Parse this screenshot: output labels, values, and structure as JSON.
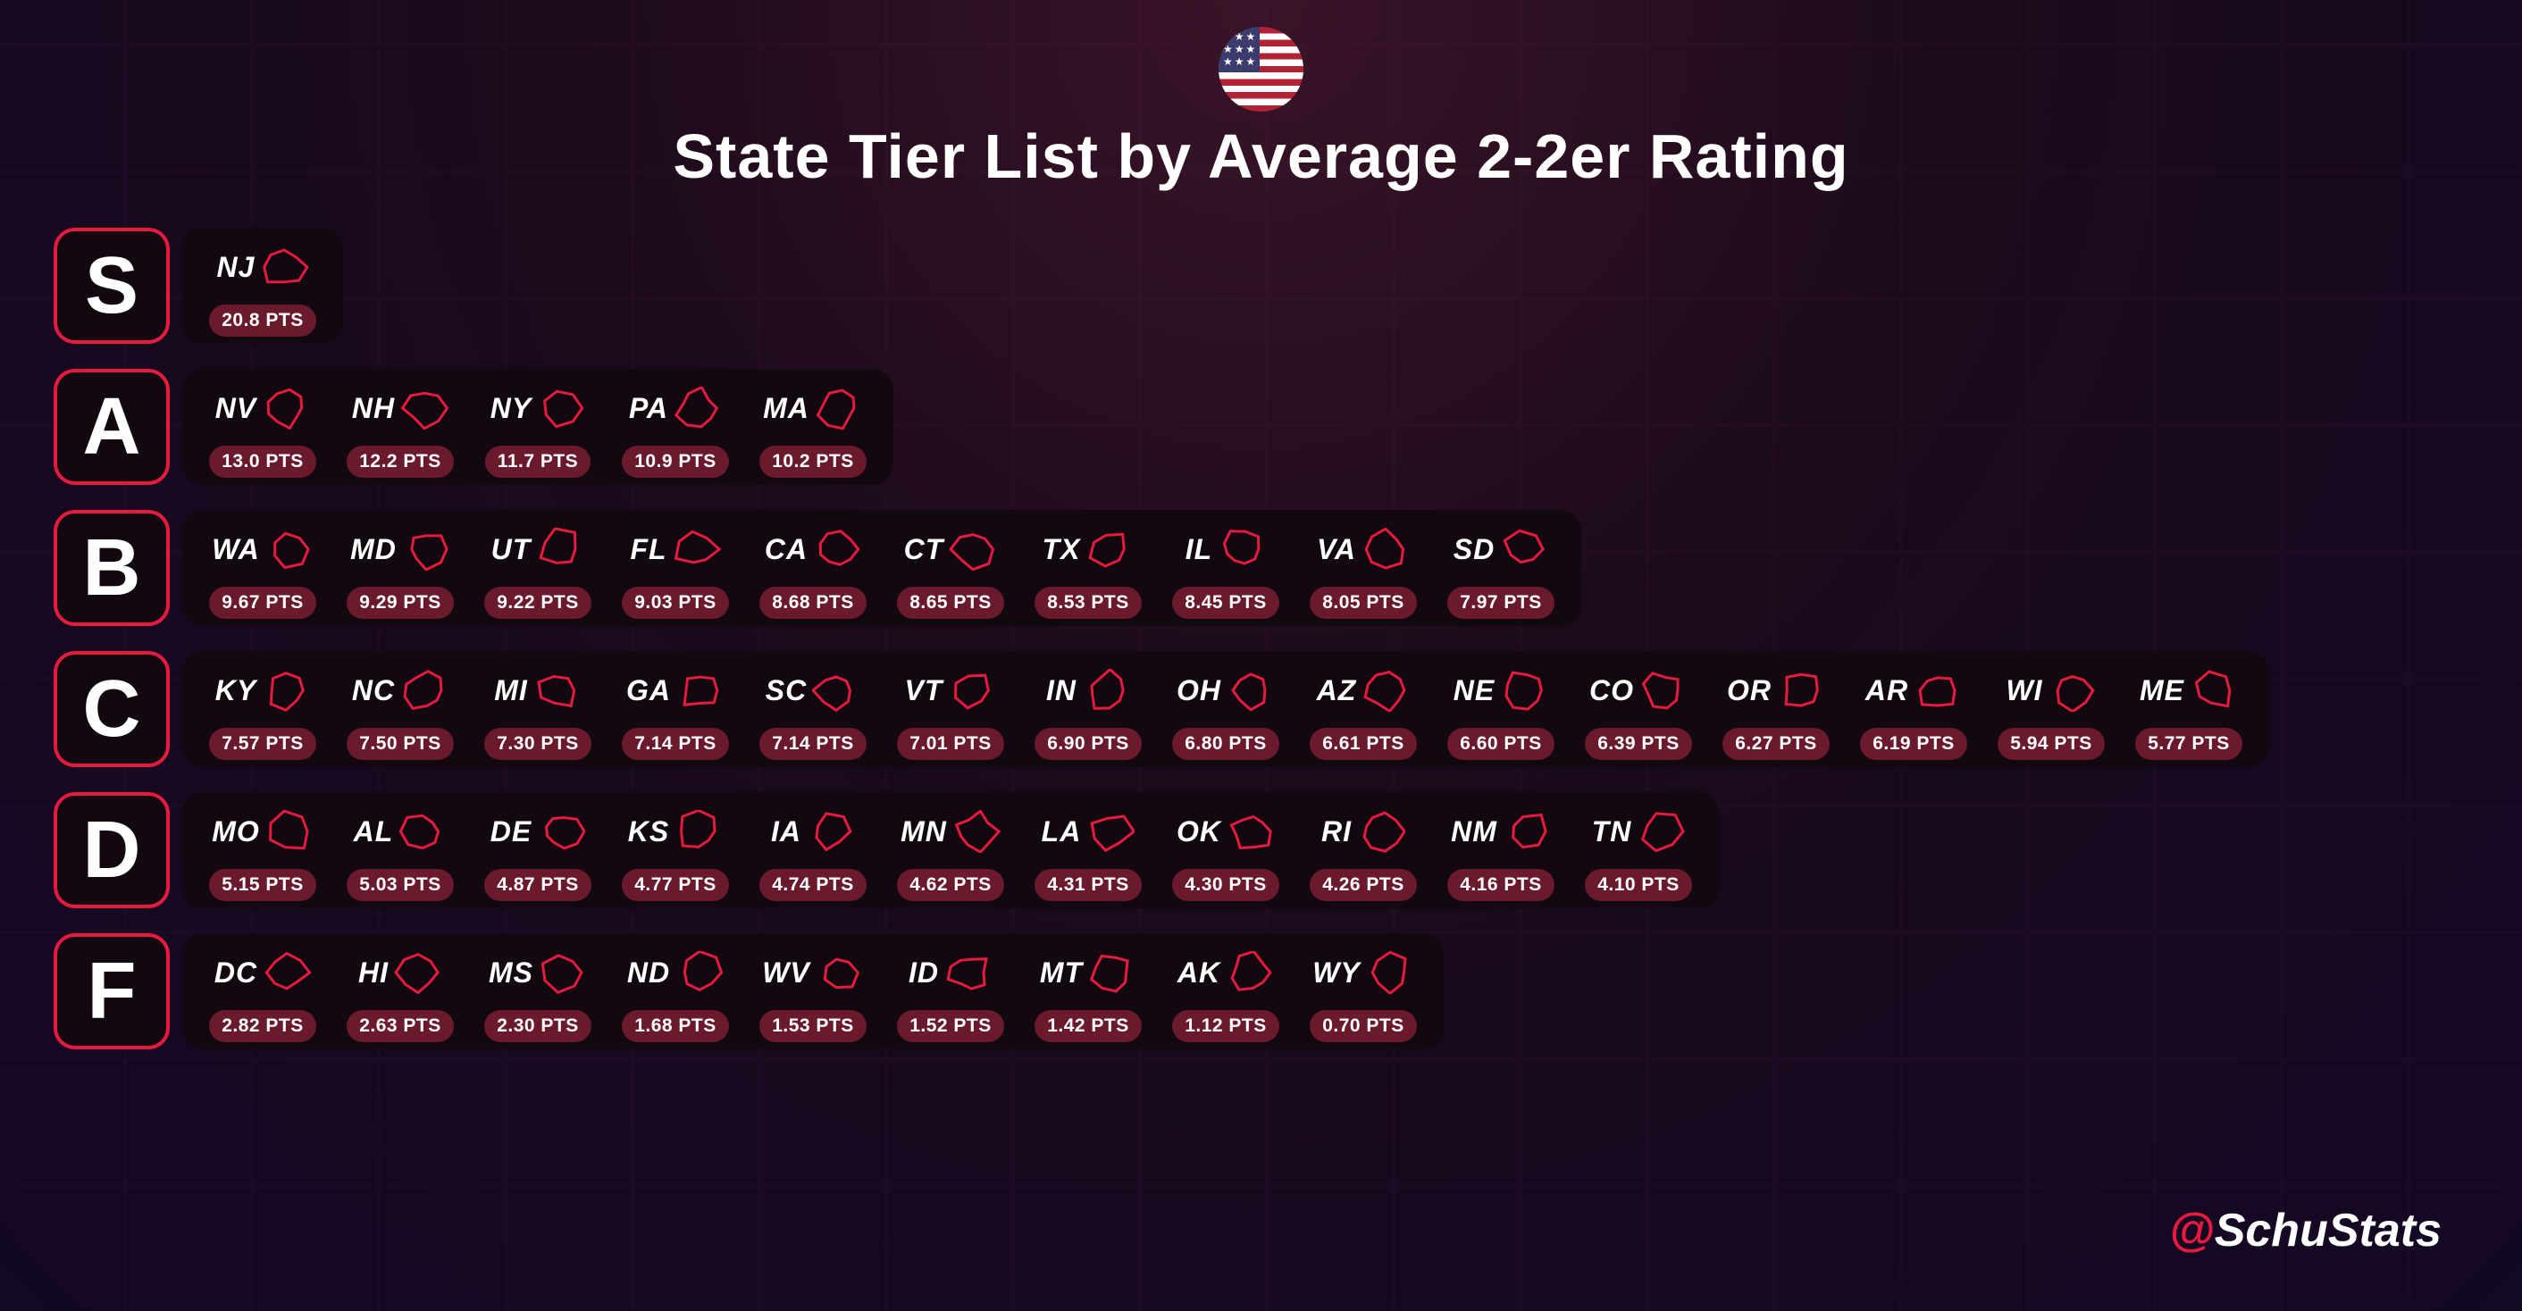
{
  "title": "State Tier List by Average 2-2er Rating",
  "credit_handle": "SchuStats",
  "colors": {
    "accent": "#e51a3e",
    "card_bg": "#110810",
    "badge_bg": "#6b1a2e",
    "text": "#ffffff",
    "background_gradient": [
      "#3a1428",
      "#1a0a1a",
      "#130825"
    ]
  },
  "typography": {
    "title_fontsize": 70,
    "tier_label_fontsize": 90,
    "state_abbr_fontsize": 32,
    "pts_fontsize": 21,
    "credit_fontsize": 52
  },
  "tiers": [
    {
      "label": "S",
      "states": [
        {
          "abbr": "NJ",
          "pts": "20.8 PTS"
        }
      ]
    },
    {
      "label": "A",
      "states": [
        {
          "abbr": "NV",
          "pts": "13.0 PTS"
        },
        {
          "abbr": "NH",
          "pts": "12.2 PTS"
        },
        {
          "abbr": "NY",
          "pts": "11.7 PTS"
        },
        {
          "abbr": "PA",
          "pts": "10.9 PTS"
        },
        {
          "abbr": "MA",
          "pts": "10.2 PTS"
        }
      ]
    },
    {
      "label": "B",
      "states": [
        {
          "abbr": "WA",
          "pts": "9.67 PTS"
        },
        {
          "abbr": "MD",
          "pts": "9.29 PTS"
        },
        {
          "abbr": "UT",
          "pts": "9.22 PTS"
        },
        {
          "abbr": "FL",
          "pts": "9.03 PTS"
        },
        {
          "abbr": "CA",
          "pts": "8.68 PTS"
        },
        {
          "abbr": "CT",
          "pts": "8.65 PTS"
        },
        {
          "abbr": "TX",
          "pts": "8.53 PTS"
        },
        {
          "abbr": "IL",
          "pts": "8.45 PTS"
        },
        {
          "abbr": "VA",
          "pts": "8.05 PTS"
        },
        {
          "abbr": "SD",
          "pts": "7.97 PTS"
        }
      ]
    },
    {
      "label": "C",
      "states": [
        {
          "abbr": "KY",
          "pts": "7.57 PTS"
        },
        {
          "abbr": "NC",
          "pts": "7.50 PTS"
        },
        {
          "abbr": "MI",
          "pts": "7.30 PTS"
        },
        {
          "abbr": "GA",
          "pts": "7.14 PTS"
        },
        {
          "abbr": "SC",
          "pts": "7.14 PTS"
        },
        {
          "abbr": "VT",
          "pts": "7.01 PTS"
        },
        {
          "abbr": "IN",
          "pts": "6.90 PTS"
        },
        {
          "abbr": "OH",
          "pts": "6.80 PTS"
        },
        {
          "abbr": "AZ",
          "pts": "6.61 PTS"
        },
        {
          "abbr": "NE",
          "pts": "6.60 PTS"
        },
        {
          "abbr": "CO",
          "pts": "6.39 PTS"
        },
        {
          "abbr": "OR",
          "pts": "6.27 PTS"
        },
        {
          "abbr": "AR",
          "pts": "6.19 PTS"
        },
        {
          "abbr": "WI",
          "pts": "5.94 PTS"
        },
        {
          "abbr": "ME",
          "pts": "5.77 PTS"
        }
      ]
    },
    {
      "label": "D",
      "states": [
        {
          "abbr": "MO",
          "pts": "5.15 PTS"
        },
        {
          "abbr": "AL",
          "pts": "5.03 PTS"
        },
        {
          "abbr": "DE",
          "pts": "4.87 PTS"
        },
        {
          "abbr": "KS",
          "pts": "4.77 PTS"
        },
        {
          "abbr": "IA",
          "pts": "4.74 PTS"
        },
        {
          "abbr": "MN",
          "pts": "4.62 PTS"
        },
        {
          "abbr": "LA",
          "pts": "4.31 PTS"
        },
        {
          "abbr": "OK",
          "pts": "4.30 PTS"
        },
        {
          "abbr": "RI",
          "pts": "4.26 PTS"
        },
        {
          "abbr": "NM",
          "pts": "4.16 PTS"
        },
        {
          "abbr": "TN",
          "pts": "4.10 PTS"
        }
      ]
    },
    {
      "label": "F",
      "states": [
        {
          "abbr": "DC",
          "pts": "2.82 PTS"
        },
        {
          "abbr": "HI",
          "pts": "2.63 PTS"
        },
        {
          "abbr": "MS",
          "pts": "2.30 PTS"
        },
        {
          "abbr": "ND",
          "pts": "1.68 PTS"
        },
        {
          "abbr": "WV",
          "pts": "1.53 PTS"
        },
        {
          "abbr": "ID",
          "pts": "1.52 PTS"
        },
        {
          "abbr": "MT",
          "pts": "1.42 PTS"
        },
        {
          "abbr": "AK",
          "pts": "1.12 PTS"
        },
        {
          "abbr": "WY",
          "pts": "0.70 PTS"
        }
      ]
    }
  ]
}
